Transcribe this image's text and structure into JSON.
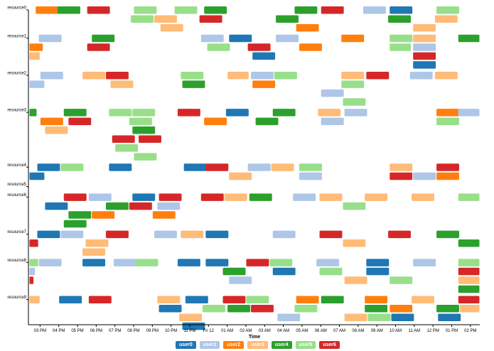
{
  "chart_data": {
    "type": "timeline",
    "xlabel": "Time",
    "x_range": [
      "Thu 14:25",
      "Fri 14:30"
    ],
    "x_ticks": [
      "03 PM",
      "04 PM",
      "05 PM",
      "06 PM",
      "07 PM",
      "08 PM",
      "09 PM",
      "10 PM",
      "11 PM",
      "Fri 12",
      "01 AM",
      "02 AM",
      "03 AM",
      "04 AM",
      "05 AM",
      "06 AM",
      "07 AM",
      "08 AM",
      "09 AM",
      "10 AM",
      "11 AM",
      "12 PM",
      "01 PM",
      "02 PM"
    ],
    "resources": [
      {
        "name": "resource0",
        "lanes": 3
      },
      {
        "name": "resource1",
        "lanes": 4
      },
      {
        "name": "resource2",
        "lanes": 4
      },
      {
        "name": "resource3",
        "lanes": 6
      },
      {
        "name": "resource4",
        "lanes": 2
      },
      {
        "name": "resource5",
        "lanes": 0
      },
      {
        "name": "resource6",
        "lanes": 4
      },
      {
        "name": "resource7",
        "lanes": 3
      },
      {
        "name": "resource8",
        "lanes": 4
      },
      {
        "name": "resource9",
        "lanes": 4
      }
    ],
    "users": [
      {
        "name": "user0",
        "color": "#1f77b4"
      },
      {
        "name": "user1",
        "color": "#aec7e8"
      },
      {
        "name": "user2",
        "color": "#ff7f0e"
      },
      {
        "name": "user3",
        "color": "#ffbb78"
      },
      {
        "name": "user4",
        "color": "#2ca02c"
      },
      {
        "name": "user5",
        "color": "#98df8a"
      },
      {
        "name": "user6",
        "color": "#d62728"
      }
    ],
    "default_duration_min": 75,
    "bars_format": [
      "resource",
      "lane",
      "user",
      "start",
      "end (if not default)"
    ],
    "bars": [
      [
        0,
        0,
        "user2",
        "14:45"
      ],
      [
        0,
        0,
        "user4",
        "15:55"
      ],
      [
        0,
        0,
        "user6",
        "17:30"
      ],
      [
        0,
        0,
        "user5",
        "20:00"
      ],
      [
        0,
        0,
        "user5",
        "22:10"
      ],
      [
        0,
        0,
        "user4",
        "23:45"
      ],
      [
        0,
        0,
        "user4",
        "04:35"
      ],
      [
        0,
        0,
        "user6",
        "06:00"
      ],
      [
        0,
        0,
        "user1",
        "08:15"
      ],
      [
        0,
        0,
        "user0",
        "09:40"
      ],
      [
        0,
        0,
        "user5",
        "12:10"
      ],
      [
        0,
        1,
        "user5",
        "19:50"
      ],
      [
        0,
        1,
        "user3",
        "21:05"
      ],
      [
        0,
        1,
        "user6",
        "23:30"
      ],
      [
        0,
        1,
        "user4",
        "03:35"
      ],
      [
        0,
        1,
        "user4",
        "09:35"
      ],
      [
        0,
        1,
        "user3",
        "12:05"
      ],
      [
        0,
        2,
        "user3",
        "21:25"
      ],
      [
        0,
        2,
        "user2",
        "04:40"
      ],
      [
        0,
        2,
        "user3",
        "10:55"
      ],
      [
        1,
        0,
        "user1",
        "14:55"
      ],
      [
        1,
        0,
        "user4",
        "17:45"
      ],
      [
        1,
        0,
        "user1",
        "23:35"
      ],
      [
        1,
        0,
        "user0",
        "01:05"
      ],
      [
        1,
        0,
        "user1",
        "03:35"
      ],
      [
        1,
        0,
        "user2",
        "07:05"
      ],
      [
        1,
        0,
        "user5",
        "09:40"
      ],
      [
        1,
        0,
        "user3",
        "10:55"
      ],
      [
        1,
        0,
        "user4",
        "13:20"
      ],
      [
        1,
        1,
        "user2",
        "14:25",
        "15:10"
      ],
      [
        1,
        1,
        "user6",
        "17:30"
      ],
      [
        1,
        1,
        "user5",
        "23:55"
      ],
      [
        1,
        1,
        "user6",
        "02:05"
      ],
      [
        1,
        1,
        "user2",
        "04:50"
      ],
      [
        1,
        1,
        "user5",
        "09:40",
        "10:50"
      ],
      [
        1,
        1,
        "user1",
        "10:55"
      ],
      [
        1,
        2,
        "user3",
        "14:25",
        "15:00"
      ],
      [
        1,
        2,
        "user0",
        "02:20"
      ],
      [
        1,
        2,
        "user6",
        "10:55"
      ],
      [
        1,
        3,
        "user0",
        "10:55"
      ],
      [
        2,
        0,
        "user1",
        "15:00"
      ],
      [
        2,
        0,
        "user3",
        "17:15"
      ],
      [
        2,
        0,
        "user6",
        "18:30"
      ],
      [
        2,
        0,
        "user5",
        "22:30"
      ],
      [
        2,
        0,
        "user3",
        "01:00",
        "02:10"
      ],
      [
        2,
        0,
        "user1",
        "02:15"
      ],
      [
        2,
        0,
        "user5",
        "03:30"
      ],
      [
        2,
        0,
        "user3",
        "07:05"
      ],
      [
        2,
        0,
        "user6",
        "08:25"
      ],
      [
        2,
        0,
        "user1",
        "10:45"
      ],
      [
        2,
        0,
        "user3",
        "12:05"
      ],
      [
        2,
        1,
        "user1",
        "14:25",
        "15:15"
      ],
      [
        2,
        1,
        "user3",
        "18:45"
      ],
      [
        2,
        1,
        "user4",
        "22:35"
      ],
      [
        2,
        1,
        "user2",
        "02:20"
      ],
      [
        2,
        1,
        "user5",
        "07:05"
      ],
      [
        2,
        2,
        "user1",
        "06:00"
      ],
      [
        2,
        3,
        "user5",
        "07:10"
      ],
      [
        3,
        0,
        "user4",
        "14:25",
        "14:50"
      ],
      [
        3,
        0,
        "user4",
        "16:15"
      ],
      [
        3,
        0,
        "user5",
        "18:40"
      ],
      [
        3,
        0,
        "user5",
        "19:55"
      ],
      [
        3,
        0,
        "user6",
        "22:20"
      ],
      [
        3,
        0,
        "user0",
        "00:55"
      ],
      [
        3,
        0,
        "user4",
        "03:25"
      ],
      [
        3,
        0,
        "user3",
        "05:50"
      ],
      [
        3,
        0,
        "user1",
        "07:15"
      ],
      [
        3,
        0,
        "user2",
        "12:10"
      ],
      [
        3,
        0,
        "user1",
        "13:20"
      ],
      [
        3,
        1,
        "user2",
        "15:00"
      ],
      [
        3,
        1,
        "user6",
        "16:30"
      ],
      [
        3,
        1,
        "user5",
        "19:45"
      ],
      [
        3,
        1,
        "user2",
        "23:45"
      ],
      [
        3,
        1,
        "user4",
        "02:30"
      ],
      [
        3,
        1,
        "user1",
        "06:00"
      ],
      [
        3,
        1,
        "user5",
        "12:10"
      ],
      [
        3,
        2,
        "user3",
        "15:15"
      ],
      [
        3,
        2,
        "user4",
        "19:55"
      ],
      [
        3,
        3,
        "user6",
        "18:50"
      ],
      [
        3,
        3,
        "user6",
        "20:15"
      ],
      [
        3,
        4,
        "user5",
        "19:00"
      ],
      [
        3,
        5,
        "user5",
        "20:00"
      ],
      [
        4,
        0,
        "user0",
        "14:50"
      ],
      [
        4,
        0,
        "user5",
        "16:05"
      ],
      [
        4,
        0,
        "user0",
        "18:40"
      ],
      [
        4,
        0,
        "user0",
        "22:40"
      ],
      [
        4,
        0,
        "user6",
        "23:50"
      ],
      [
        4,
        0,
        "user1",
        "02:05"
      ],
      [
        4,
        0,
        "user3",
        "03:20"
      ],
      [
        4,
        0,
        "user5",
        "04:50"
      ],
      [
        4,
        0,
        "user3",
        "09:40"
      ],
      [
        4,
        0,
        "user6",
        "12:10"
      ],
      [
        4,
        1,
        "user0",
        "14:25",
        "15:15"
      ],
      [
        4,
        1,
        "user3",
        "01:05"
      ],
      [
        4,
        1,
        "user1",
        "04:50"
      ],
      [
        4,
        1,
        "user6",
        "09:40"
      ],
      [
        4,
        1,
        "user1",
        "10:55"
      ],
      [
        4,
        1,
        "user2",
        "12:10"
      ],
      [
        6,
        0,
        "user6",
        "16:15"
      ],
      [
        6,
        0,
        "user1",
        "17:35"
      ],
      [
        6,
        0,
        "user0",
        "19:55"
      ],
      [
        6,
        0,
        "user6",
        "21:20"
      ],
      [
        6,
        0,
        "user6",
        "23:35"
      ],
      [
        6,
        0,
        "user3",
        "00:50"
      ],
      [
        6,
        0,
        "user4",
        "02:10"
      ],
      [
        6,
        0,
        "user1",
        "04:30"
      ],
      [
        6,
        0,
        "user3",
        "05:55"
      ],
      [
        6,
        0,
        "user3",
        "08:20"
      ],
      [
        6,
        0,
        "user3",
        "10:50"
      ],
      [
        6,
        0,
        "user5",
        "13:20"
      ],
      [
        6,
        1,
        "user0",
        "15:15"
      ],
      [
        6,
        1,
        "user4",
        "18:30"
      ],
      [
        6,
        1,
        "user6",
        "19:45"
      ],
      [
        6,
        1,
        "user1",
        "21:15"
      ],
      [
        6,
        1,
        "user5",
        "07:10"
      ],
      [
        6,
        2,
        "user4",
        "16:30"
      ],
      [
        6,
        2,
        "user2",
        "17:45"
      ],
      [
        6,
        2,
        "user2",
        "21:00"
      ],
      [
        6,
        3,
        "user4",
        "16:15"
      ],
      [
        7,
        0,
        "user0",
        "14:50"
      ],
      [
        7,
        0,
        "user1",
        "16:05"
      ],
      [
        7,
        0,
        "user6",
        "18:30"
      ],
      [
        7,
        0,
        "user1",
        "21:05"
      ],
      [
        7,
        0,
        "user3",
        "22:30"
      ],
      [
        7,
        0,
        "user0",
        "23:50"
      ],
      [
        7,
        0,
        "user1",
        "03:25"
      ],
      [
        7,
        0,
        "user6",
        "05:55"
      ],
      [
        7,
        0,
        "user6",
        "09:35"
      ],
      [
        7,
        0,
        "user4",
        "12:10"
      ],
      [
        7,
        1,
        "user6",
        "14:25",
        "14:55"
      ],
      [
        7,
        1,
        "user3",
        "17:25"
      ],
      [
        7,
        1,
        "user3",
        "07:10"
      ],
      [
        7,
        1,
        "user4",
        "13:20"
      ],
      [
        7,
        2,
        "user3",
        "17:15"
      ],
      [
        8,
        0,
        "user5",
        "14:25",
        "14:55"
      ],
      [
        8,
        0,
        "user1",
        "14:55"
      ],
      [
        8,
        0,
        "user0",
        "17:15"
      ],
      [
        8,
        0,
        "user1",
        "18:55"
      ],
      [
        8,
        0,
        "user5",
        "20:05"
      ],
      [
        8,
        0,
        "user0",
        "22:20"
      ],
      [
        8,
        0,
        "user0",
        "23:50"
      ],
      [
        8,
        0,
        "user6",
        "02:00"
      ],
      [
        8,
        0,
        "user5",
        "03:15"
      ],
      [
        8,
        0,
        "user1",
        "05:45"
      ],
      [
        8,
        0,
        "user0",
        "08:25"
      ],
      [
        8,
        0,
        "user1",
        "10:55"
      ],
      [
        8,
        0,
        "user5",
        "13:20"
      ],
      [
        8,
        1,
        "user1",
        "14:25",
        "14:45"
      ],
      [
        8,
        1,
        "user4",
        "00:45"
      ],
      [
        8,
        1,
        "user0",
        "03:25"
      ],
      [
        8,
        1,
        "user5",
        "05:55"
      ],
      [
        8,
        1,
        "user0",
        "08:25"
      ],
      [
        8,
        1,
        "user6",
        "13:20"
      ],
      [
        8,
        2,
        "user6",
        "14:25",
        "14:40"
      ],
      [
        8,
        2,
        "user1",
        "01:05"
      ],
      [
        8,
        2,
        "user3",
        "07:15"
      ],
      [
        8,
        2,
        "user5",
        "09:40"
      ],
      [
        8,
        2,
        "user3",
        "13:20"
      ],
      [
        8,
        3,
        "user4",
        "13:20"
      ],
      [
        9,
        0,
        "user3",
        "14:25",
        "15:00"
      ],
      [
        9,
        0,
        "user0",
        "16:00"
      ],
      [
        9,
        0,
        "user6",
        "17:35"
      ],
      [
        9,
        0,
        "user3",
        "21:15"
      ],
      [
        9,
        0,
        "user0",
        "22:45"
      ],
      [
        9,
        0,
        "user6",
        "00:45"
      ],
      [
        9,
        0,
        "user5",
        "02:00"
      ],
      [
        9,
        0,
        "user2",
        "04:40"
      ],
      [
        9,
        0,
        "user4",
        "06:00"
      ],
      [
        9,
        0,
        "user2",
        "08:20"
      ],
      [
        9,
        0,
        "user3",
        "10:50"
      ],
      [
        9,
        0,
        "user6",
        "13:20"
      ],
      [
        9,
        1,
        "user0",
        "21:20"
      ],
      [
        9,
        1,
        "user5",
        "23:40"
      ],
      [
        9,
        1,
        "user4",
        "01:00"
      ],
      [
        9,
        1,
        "user6",
        "02:15"
      ],
      [
        9,
        1,
        "user5",
        "04:35"
      ],
      [
        9,
        1,
        "user4",
        "08:20"
      ],
      [
        9,
        1,
        "user2",
        "09:40"
      ],
      [
        9,
        1,
        "user4",
        "12:10"
      ],
      [
        9,
        1,
        "user3",
        "13:25"
      ],
      [
        9,
        2,
        "user3",
        "22:25"
      ],
      [
        9,
        2,
        "user1",
        "03:40"
      ],
      [
        9,
        2,
        "user3",
        "07:15"
      ],
      [
        9,
        2,
        "user5",
        "08:30"
      ],
      [
        9,
        2,
        "user0",
        "09:45"
      ],
      [
        9,
        2,
        "user0",
        "12:15"
      ],
      [
        9,
        3,
        "user0",
        "22:35"
      ]
    ]
  }
}
